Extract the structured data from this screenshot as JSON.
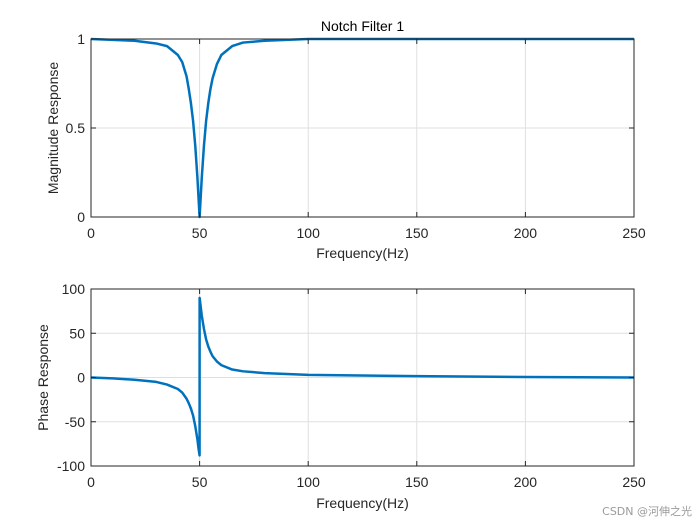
{
  "watermark": "CSDN @河伸之光",
  "colors": {
    "line": "#0072BD",
    "grid": "#dfdfdf",
    "axis": "#262626"
  },
  "chart_data": [
    {
      "type": "line",
      "title": "Notch Filter 1",
      "xlabel": "Frequency(Hz)",
      "ylabel": "Magnitude Response",
      "xlim": [
        0,
        250
      ],
      "ylim": [
        0,
        1
      ],
      "xticks": [
        0,
        50,
        100,
        150,
        200,
        250
      ],
      "yticks": [
        0,
        0.5,
        1
      ],
      "grid": true,
      "series": [
        {
          "x": [
            0,
            10,
            20,
            30,
            35,
            40,
            42,
            44,
            45,
            46,
            47,
            48,
            49,
            49.5,
            50,
            50.5,
            51,
            52,
            53,
            54,
            55,
            56,
            58,
            60,
            65,
            70,
            80,
            100,
            150,
            200,
            250
          ],
          "values": [
            1.0,
            0.995,
            0.99,
            0.975,
            0.96,
            0.91,
            0.87,
            0.79,
            0.72,
            0.64,
            0.54,
            0.4,
            0.22,
            0.11,
            0.0,
            0.11,
            0.22,
            0.4,
            0.54,
            0.64,
            0.72,
            0.78,
            0.86,
            0.91,
            0.96,
            0.98,
            0.99,
            1.0,
            1.0,
            1.0,
            1.0
          ]
        }
      ]
    },
    {
      "type": "line",
      "title": "",
      "xlabel": "Frequency(Hz)",
      "ylabel": "Phase Response",
      "xlim": [
        0,
        250
      ],
      "ylim": [
        -100,
        100
      ],
      "xticks": [
        0,
        50,
        100,
        150,
        200,
        250
      ],
      "yticks": [
        -100,
        -50,
        0,
        50,
        100
      ],
      "grid": true,
      "series": [
        {
          "x": [
            0,
            10,
            20,
            30,
            35,
            40,
            42,
            44,
            45,
            46,
            47,
            48,
            49,
            49.5,
            49.99,
            50.01,
            50.5,
            51,
            52,
            53,
            54,
            55,
            56,
            58,
            60,
            65,
            70,
            80,
            100,
            150,
            200,
            250
          ],
          "values": [
            0,
            -1,
            -2.5,
            -5,
            -8,
            -13,
            -17,
            -24,
            -29,
            -35,
            -43,
            -55,
            -70,
            -80,
            -88,
            90,
            80,
            70,
            55,
            43,
            35,
            29,
            24,
            18,
            14,
            9,
            7,
            5,
            3,
            1.5,
            0.5,
            0
          ]
        }
      ]
    }
  ]
}
